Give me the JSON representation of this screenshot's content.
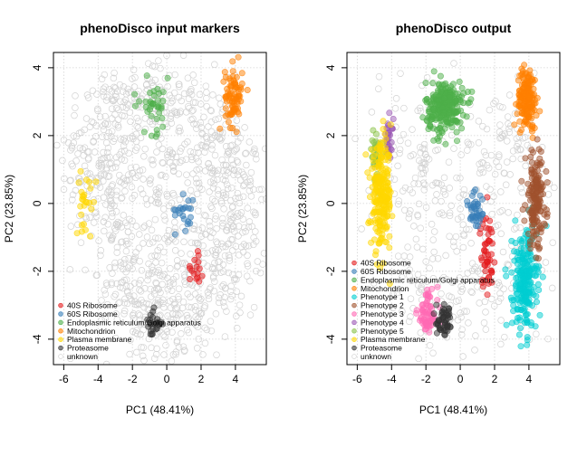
{
  "chart_data": [
    {
      "type": "scatter",
      "title": "phenoDisco input markers",
      "xlabel": "PC1 (48.41%)",
      "ylabel": "PC2 (23.85%)",
      "xlim": [
        -6.6,
        5.8
      ],
      "ylim": [
        -4.75,
        4.45
      ],
      "xticks": [
        -6,
        -4,
        -2,
        0,
        2,
        4
      ],
      "yticks": [
        -4,
        -2,
        0,
        2,
        4
      ],
      "grid": true,
      "legend_position": "bottom-left",
      "background": {
        "name": "unknown",
        "color": "#d3d3d3",
        "regions": [
          {
            "cx": -3.6,
            "cy": 1.3,
            "sx": 1.3,
            "sy": 1.4,
            "n": 230
          },
          {
            "cx": -0.8,
            "cy": 3.2,
            "sx": 1.3,
            "sy": 0.5,
            "n": 90
          },
          {
            "cx": 0.3,
            "cy": 0.6,
            "sx": 1.7,
            "sy": 1.6,
            "n": 210
          },
          {
            "cx": 3.9,
            "cy": -0.6,
            "sx": 0.9,
            "sy": 1.4,
            "n": 180
          },
          {
            "cx": -1.0,
            "cy": -3.0,
            "sx": 1.2,
            "sy": 0.9,
            "n": 120
          },
          {
            "cx": 1.6,
            "cy": -2.1,
            "sx": 1.4,
            "sy": 0.9,
            "n": 110
          },
          {
            "cx": 2.8,
            "cy": 1.7,
            "sx": 1.0,
            "sy": 0.9,
            "n": 90
          },
          {
            "cx": -2.8,
            "cy": -1.8,
            "sx": 0.8,
            "sy": 0.9,
            "n": 60
          },
          {
            "cx": 0.5,
            "cy": -3.9,
            "sx": 1.3,
            "sy": 0.5,
            "n": 50
          }
        ]
      },
      "series": [
        {
          "name": "40S Ribosome",
          "color": "#e41a1c",
          "clusters": [
            {
              "cx": 1.7,
              "cy": -1.75,
              "sx": 0.22,
              "sy": 0.35,
              "n": 16
            }
          ]
        },
        {
          "name": "60S Ribosome",
          "color": "#377eb8",
          "clusters": [
            {
              "cx": 1.1,
              "cy": -0.2,
              "sx": 0.3,
              "sy": 0.3,
              "n": 22
            }
          ]
        },
        {
          "name": "Endoplasmic reticulum/Golgi apparatus",
          "color": "#4daf4a",
          "clusters": [
            {
              "cx": -0.8,
              "cy": 2.9,
              "sx": 0.6,
              "sy": 0.4,
              "n": 38
            }
          ]
        },
        {
          "name": "Mitochondrion",
          "color": "#ff7f00",
          "clusters": [
            {
              "cx": 3.9,
              "cy": 3.15,
              "sx": 0.25,
              "sy": 0.45,
              "n": 80
            }
          ]
        },
        {
          "name": "Plasma membrane",
          "color": "#ffd700",
          "clusters": [
            {
              "cx": -4.7,
              "cy": 0.1,
              "sx": 0.3,
              "sy": 0.4,
              "n": 26
            }
          ]
        },
        {
          "name": "Proteasome",
          "color": "#333333",
          "clusters": [
            {
              "cx": -0.8,
              "cy": -3.55,
              "sx": 0.25,
              "sy": 0.2,
              "n": 25
            }
          ]
        },
        {
          "name": "unknown",
          "color": "#d3d3d3",
          "clusters": []
        }
      ]
    },
    {
      "type": "scatter",
      "title": "phenoDisco output",
      "xlabel": "PC1 (48.41%)",
      "ylabel": "PC2 (23.85%)",
      "xlim": [
        -6.6,
        5.8
      ],
      "ylim": [
        -4.75,
        4.45
      ],
      "xticks": [
        -6,
        -4,
        -2,
        0,
        2,
        4
      ],
      "yticks": [
        -4,
        -2,
        0,
        2,
        4
      ],
      "grid": true,
      "legend_position": "bottom-left",
      "background": {
        "name": "unknown",
        "color": "#d3d3d3",
        "regions": [
          {
            "cx": -3.0,
            "cy": 1.0,
            "sx": 1.4,
            "sy": 1.5,
            "n": 90
          },
          {
            "cx": 0.3,
            "cy": 0.6,
            "sx": 1.8,
            "sy": 1.6,
            "n": 110
          },
          {
            "cx": 2.8,
            "cy": 1.6,
            "sx": 1.0,
            "sy": 0.9,
            "n": 50
          },
          {
            "cx": -1.5,
            "cy": -2.8,
            "sx": 1.3,
            "sy": 0.9,
            "n": 70
          },
          {
            "cx": 1.5,
            "cy": -2.4,
            "sx": 1.3,
            "sy": 0.9,
            "n": 60
          },
          {
            "cx": 3.8,
            "cy": -0.3,
            "sx": 0.9,
            "sy": 1.5,
            "n": 40
          }
        ]
      },
      "series": [
        {
          "name": "40S Ribosome",
          "color": "#e41a1c",
          "clusters": [
            {
              "cx": 1.55,
              "cy": -1.4,
              "sx": 0.2,
              "sy": 0.55,
              "n": 50
            }
          ]
        },
        {
          "name": "60S Ribosome",
          "color": "#377eb8",
          "clusters": [
            {
              "cx": 0.9,
              "cy": -0.2,
              "sx": 0.25,
              "sy": 0.4,
              "n": 40
            }
          ]
        },
        {
          "name": "Endoplasmic reticulum/Golgi apparatus",
          "color": "#4daf4a",
          "clusters": [
            {
              "cx": -0.9,
              "cy": 2.85,
              "sx": 0.55,
              "sy": 0.38,
              "n": 260
            }
          ]
        },
        {
          "name": "Mitochondrion",
          "color": "#ff7f00",
          "clusters": [
            {
              "cx": 3.9,
              "cy": 3.1,
              "sx": 0.28,
              "sy": 0.45,
              "n": 160
            }
          ]
        },
        {
          "name": "Phenotype 1",
          "color": "#00ced1",
          "clusters": [
            {
              "cx": 3.75,
              "cy": -2.3,
              "sx": 0.35,
              "sy": 0.75,
              "n": 230
            }
          ]
        },
        {
          "name": "Phenotype 2",
          "color": "#a0522d",
          "clusters": [
            {
              "cx": 4.4,
              "cy": 0.1,
              "sx": 0.3,
              "sy": 0.7,
              "n": 170
            }
          ]
        },
        {
          "name": "Phenotype 3",
          "color": "#ff69b4",
          "clusters": [
            {
              "cx": -1.9,
              "cy": -3.25,
              "sx": 0.3,
              "sy": 0.35,
              "n": 70
            }
          ]
        },
        {
          "name": "Phenotype 4",
          "color": "#9c59b6",
          "clusters": [
            {
              "cx": -4.15,
              "cy": 1.95,
              "sx": 0.12,
              "sy": 0.28,
              "n": 30
            }
          ]
        },
        {
          "name": "Phenotype 5",
          "color": "#8bc34a",
          "clusters": [
            {
              "cx": -4.9,
              "cy": 1.4,
              "sx": 0.15,
              "sy": 0.35,
              "n": 40
            }
          ]
        },
        {
          "name": "Plasma membrane",
          "color": "#ffd700",
          "clusters": [
            {
              "cx": -4.6,
              "cy": 0.2,
              "sx": 0.3,
              "sy": 0.75,
              "n": 230
            }
          ]
        },
        {
          "name": "Proteasome",
          "color": "#333333",
          "clusters": [
            {
              "cx": -0.9,
              "cy": -3.5,
              "sx": 0.25,
              "sy": 0.22,
              "n": 50
            }
          ]
        },
        {
          "name": "unknown",
          "color": "#d3d3d3",
          "clusters": []
        }
      ]
    }
  ]
}
